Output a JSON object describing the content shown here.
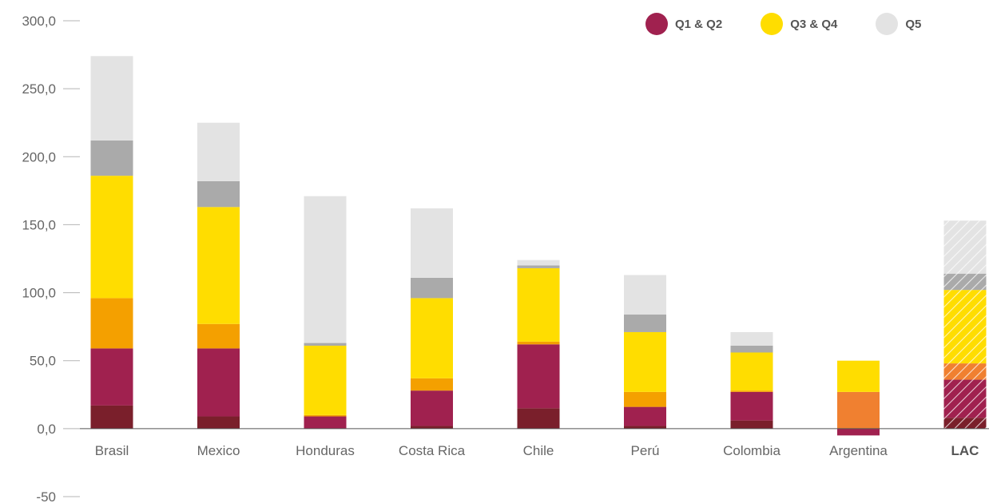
{
  "chart_data": {
    "type": "bar",
    "stacked": true,
    "ylim": [
      -50,
      300
    ],
    "y_ticks": [
      "300,0",
      "250,0",
      "200,0",
      "150,0",
      "100,0",
      "50,0",
      "0,0",
      "-50"
    ],
    "y_tick_values": [
      300,
      250,
      200,
      150,
      100,
      50,
      0,
      -50
    ],
    "categories": [
      "Brasil",
      "Mexico",
      "Honduras",
      "Costa Rica",
      "Chile",
      "Perú",
      "Colombia",
      "Argentina",
      "LAC"
    ],
    "bold_categories": [
      "LAC"
    ],
    "hatched_categories": [
      "LAC"
    ],
    "legend_position": "top-right",
    "legend": [
      {
        "label": "Q1 & Q2",
        "color": "#a0214f"
      },
      {
        "label": "Q3 & Q4",
        "color": "#ffdd00"
      },
      {
        "label": "Q5",
        "color": "#e3e3e3"
      }
    ],
    "series": [
      {
        "color": "#7a1f2b",
        "values": [
          17,
          9,
          0,
          2,
          15,
          2,
          6,
          0,
          8
        ]
      },
      {
        "color": "#a0214f",
        "values": [
          42,
          50,
          9,
          26,
          47,
          14,
          21,
          -5,
          28
        ]
      },
      {
        "color": "#f4a000",
        "values": [
          37,
          18,
          1,
          9,
          2,
          11,
          1,
          0,
          0
        ]
      },
      {
        "color": "#f08030",
        "values": [
          0,
          0,
          0,
          0,
          0,
          0,
          0,
          27,
          12
        ]
      },
      {
        "color": "#ffdd00",
        "values": [
          90,
          86,
          51,
          59,
          54,
          44,
          28,
          23,
          54
        ]
      },
      {
        "color": "#aaaaaa",
        "values": [
          26,
          19,
          2,
          15,
          2,
          13,
          5,
          0,
          12
        ]
      },
      {
        "color": "#e3e3e3",
        "values": [
          62,
          43,
          108,
          51,
          4,
          29,
          10,
          0,
          39
        ]
      }
    ]
  }
}
